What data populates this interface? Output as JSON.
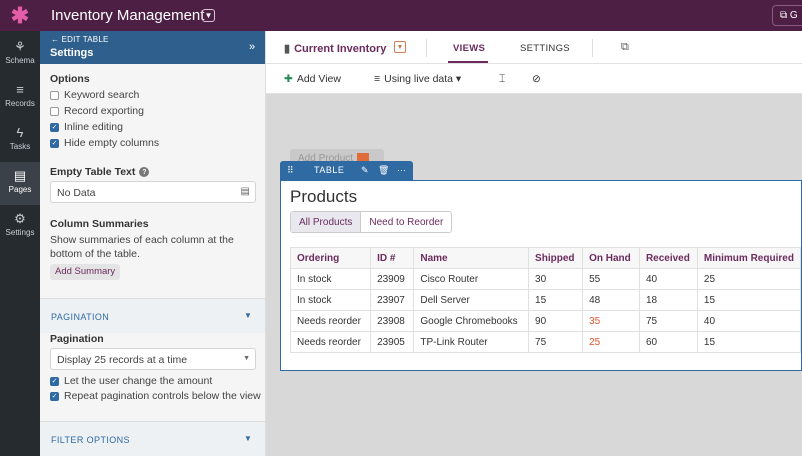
{
  "topbar": {
    "app_title": "Inventory Management",
    "logo_glyph": "✱",
    "right_text": "G"
  },
  "rail": {
    "items": [
      {
        "label": "Schema",
        "icon": "schema-icon",
        "glyph": "⚘"
      },
      {
        "label": "Records",
        "icon": "database-icon",
        "glyph": "≡"
      },
      {
        "label": "Tasks",
        "icon": "bolt-icon",
        "glyph": "ϟ"
      },
      {
        "label": "Pages",
        "icon": "pages-icon",
        "glyph": "▤"
      },
      {
        "label": "Settings",
        "icon": "gear-icon",
        "glyph": "⚙"
      }
    ]
  },
  "sidebar": {
    "back_label": "← EDIT TABLE",
    "title": "Settings",
    "options_label": "Options",
    "options": [
      {
        "label": "Keyword search",
        "checked": false
      },
      {
        "label": "Record exporting",
        "checked": false
      },
      {
        "label": "Inline editing",
        "checked": true
      },
      {
        "label": "Hide empty columns",
        "checked": true
      }
    ],
    "empty_text_label": "Empty Table Text",
    "empty_text_value": "No Data",
    "summaries_label": "Column Summaries",
    "summaries_desc": "Show summaries of each column at the bottom of the table.",
    "add_summary": "Add Summary",
    "pagination_section": "PAGINATION",
    "pagination_label": "Pagination",
    "pagination_value": "Display 25 records at a time",
    "pagination_options": [
      {
        "label": "Let the user change the amount",
        "checked": true
      },
      {
        "label": "Repeat pagination controls below the view",
        "checked": true
      }
    ],
    "filter_section": "FILTER OPTIONS"
  },
  "header": {
    "view_name": "Current Inventory",
    "tabs": [
      {
        "label": "VIEWS"
      },
      {
        "label": "SETTINGS"
      }
    ]
  },
  "toolbar": {
    "add_view": "Add View",
    "live_data": "Using live data ▾"
  },
  "canvas": {
    "ghost_label": "Add Product",
    "table_tool_label": "TABLE",
    "table_title": "Products",
    "filters": [
      "All Products",
      "Need to Reorder"
    ],
    "columns": [
      "Ordering",
      "ID #",
      "Name",
      "Shipped",
      "On Hand",
      "Received",
      "Minimum Required"
    ],
    "rows": [
      [
        "In stock",
        "23909",
        "Cisco Router",
        "30",
        "55",
        "40",
        "25"
      ],
      [
        "In stock",
        "23907",
        "Dell Server",
        "15",
        "48",
        "18",
        "15"
      ],
      [
        "Needs reorder",
        "23908",
        "Google Chromebooks",
        "90",
        "35",
        "75",
        "40"
      ],
      [
        "Needs reorder",
        "23905",
        "TP-Link Router",
        "75",
        "25",
        "60",
        "15"
      ]
    ]
  },
  "colors": {
    "topbar": "#4d1f44",
    "accent": "#6b2b5e",
    "blue": "#2f6aa3",
    "warning": "#e0552a"
  }
}
